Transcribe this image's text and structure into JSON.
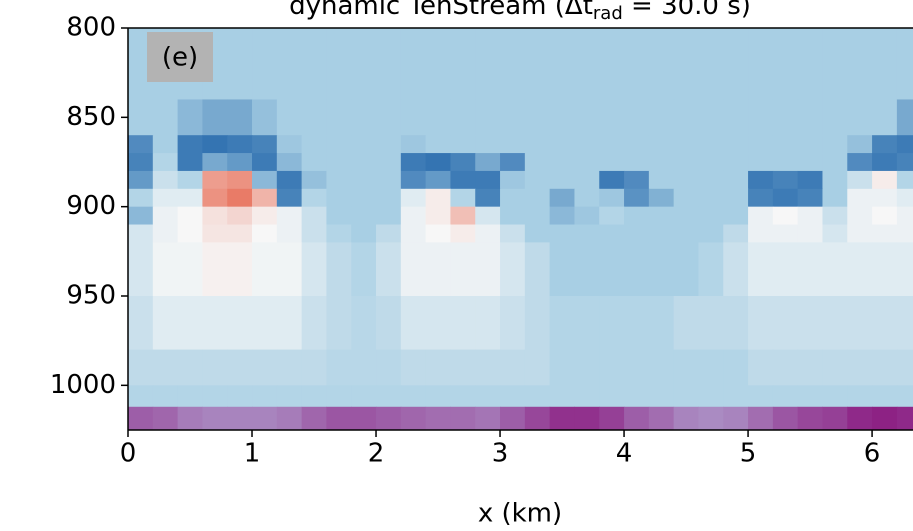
{
  "chart_data": {
    "type": "heatmap",
    "title_parts": [
      "dynamic TenStream (Δt",
      "rad",
      " = 30.0 s)"
    ],
    "panel_label": "(e)",
    "xlabel": "x (km)",
    "xlim": [
      0,
      6.33
    ],
    "xticks": [
      0,
      1,
      2,
      3,
      4,
      5,
      6
    ],
    "ylim": [
      1025,
      800
    ],
    "yticks": [
      800,
      850,
      900,
      950,
      1000
    ],
    "x_edges": [
      0,
      0.2,
      0.4,
      0.6,
      0.8,
      1.0,
      1.2,
      1.4,
      1.6,
      1.8,
      2.0,
      2.2,
      2.4,
      2.6,
      2.8,
      3.0,
      3.2,
      3.4,
      3.6,
      3.8,
      4.0,
      4.2,
      4.4,
      4.6,
      4.8,
      5.0,
      5.2,
      5.4,
      5.6,
      5.8,
      6.0,
      6.2,
      6.4
    ],
    "y_edges": [
      800,
      840,
      860,
      870,
      880,
      890,
      900,
      910,
      920,
      950,
      980,
      1000,
      1012
    ],
    "colormap": [
      "#2a6cae",
      "#a8cfe4",
      "#f7f7f7",
      "#e8705a"
    ],
    "colormap_values": [
      -1,
      -0.35,
      0,
      0.6
    ],
    "values": [
      [
        -0.35,
        -0.35,
        -0.35,
        -0.35,
        -0.35,
        -0.35,
        -0.35,
        -0.35,
        -0.35,
        -0.35,
        -0.35,
        -0.35,
        -0.35,
        -0.35,
        -0.35,
        -0.35,
        -0.35,
        -0.35,
        -0.35,
        -0.35,
        -0.35,
        -0.35,
        -0.35,
        -0.35,
        -0.35,
        -0.35,
        -0.35,
        -0.35,
        -0.35,
        -0.35,
        -0.35,
        -0.35
      ],
      [
        -0.35,
        -0.35,
        -0.5,
        -0.6,
        -0.6,
        -0.45,
        -0.35,
        -0.35,
        -0.35,
        -0.35,
        -0.35,
        -0.35,
        -0.35,
        -0.35,
        -0.35,
        -0.35,
        -0.35,
        -0.35,
        -0.35,
        -0.35,
        -0.35,
        -0.35,
        -0.35,
        -0.35,
        -0.35,
        -0.35,
        -0.35,
        -0.35,
        -0.35,
        -0.35,
        -0.35,
        -0.6
      ],
      [
        -0.8,
        -0.35,
        -0.9,
        -0.95,
        -0.9,
        -0.85,
        -0.4,
        -0.35,
        -0.35,
        -0.35,
        -0.35,
        -0.4,
        -0.35,
        -0.35,
        -0.35,
        -0.35,
        -0.35,
        -0.35,
        -0.35,
        -0.35,
        -0.35,
        -0.35,
        -0.35,
        -0.35,
        -0.35,
        -0.35,
        -0.35,
        -0.35,
        -0.35,
        -0.45,
        -0.85,
        -0.9
      ],
      [
        -0.85,
        -0.3,
        -0.9,
        -0.6,
        -0.7,
        -0.9,
        -0.5,
        -0.35,
        -0.35,
        -0.35,
        -0.35,
        -0.9,
        -0.95,
        -0.85,
        -0.6,
        -0.8,
        -0.35,
        -0.35,
        -0.35,
        -0.35,
        -0.35,
        -0.35,
        -0.35,
        -0.35,
        -0.35,
        -0.35,
        -0.35,
        -0.35,
        -0.35,
        -0.8,
        -0.9,
        -0.85
      ],
      [
        -0.7,
        -0.2,
        -0.3,
        0.4,
        0.45,
        -0.5,
        -0.9,
        -0.45,
        -0.35,
        -0.35,
        -0.35,
        -0.8,
        -0.7,
        -0.9,
        -0.9,
        -0.4,
        -0.35,
        -0.35,
        -0.35,
        -0.9,
        -0.8,
        -0.35,
        -0.35,
        -0.35,
        -0.35,
        -0.9,
        -0.85,
        -0.9,
        -0.35,
        -0.2,
        0.05,
        -0.3
      ],
      [
        -0.3,
        -0.1,
        -0.1,
        0.45,
        0.55,
        0.3,
        -0.85,
        -0.3,
        -0.35,
        -0.35,
        -0.35,
        -0.1,
        0.05,
        -0.3,
        -0.85,
        -0.35,
        -0.35,
        -0.6,
        -0.35,
        -0.4,
        -0.75,
        -0.55,
        -0.35,
        -0.35,
        -0.35,
        -0.85,
        -0.9,
        -0.85,
        -0.35,
        -0.05,
        -0.05,
        -0.1
      ],
      [
        -0.5,
        -0.05,
        0,
        0.1,
        0.15,
        0.05,
        -0.05,
        -0.2,
        -0.35,
        -0.35,
        -0.35,
        -0.05,
        0.05,
        0.25,
        -0.15,
        -0.35,
        -0.35,
        -0.5,
        -0.4,
        -0.3,
        -0.35,
        -0.35,
        -0.35,
        -0.35,
        -0.35,
        -0.05,
        0,
        -0.05,
        -0.2,
        -0.05,
        0,
        -0.05
      ],
      [
        -0.15,
        -0.05,
        0,
        0.08,
        0.08,
        0,
        -0.05,
        -0.2,
        -0.3,
        -0.35,
        -0.25,
        -0.05,
        0,
        0.05,
        -0.05,
        -0.2,
        -0.35,
        -0.35,
        -0.35,
        -0.35,
        -0.35,
        -0.35,
        -0.35,
        -0.35,
        -0.25,
        -0.05,
        -0.05,
        -0.05,
        -0.15,
        -0.05,
        -0.05,
        -0.05
      ],
      [
        -0.15,
        -0.03,
        -0.03,
        0.03,
        0.03,
        -0.03,
        -0.03,
        -0.15,
        -0.25,
        -0.3,
        -0.2,
        -0.05,
        -0.05,
        -0.05,
        -0.05,
        -0.15,
        -0.25,
        -0.35,
        -0.35,
        -0.35,
        -0.35,
        -0.35,
        -0.35,
        -0.3,
        -0.2,
        -0.1,
        -0.1,
        -0.1,
        -0.1,
        -0.1,
        -0.1,
        -0.1
      ],
      [
        -0.2,
        -0.1,
        -0.1,
        -0.1,
        -0.1,
        -0.1,
        -0.1,
        -0.2,
        -0.25,
        -0.28,
        -0.25,
        -0.15,
        -0.15,
        -0.15,
        -0.15,
        -0.2,
        -0.25,
        -0.3,
        -0.3,
        -0.3,
        -0.3,
        -0.3,
        -0.25,
        -0.25,
        -0.25,
        -0.2,
        -0.2,
        -0.2,
        -0.2,
        -0.2,
        -0.2,
        -0.2
      ],
      [
        -0.25,
        -0.25,
        -0.25,
        -0.25,
        -0.25,
        -0.25,
        -0.25,
        -0.25,
        -0.28,
        -0.28,
        -0.28,
        -0.25,
        -0.25,
        -0.25,
        -0.25,
        -0.25,
        -0.25,
        -0.3,
        -0.3,
        -0.3,
        -0.3,
        -0.3,
        -0.3,
        -0.3,
        -0.3,
        -0.25,
        -0.25,
        -0.25,
        -0.25,
        -0.25,
        -0.25,
        -0.25
      ],
      [
        -0.3,
        -0.3,
        -0.3,
        -0.3,
        -0.3,
        -0.3,
        -0.3,
        -0.3,
        -0.3,
        -0.3,
        -0.3,
        -0.3,
        -0.3,
        -0.3,
        -0.3,
        -0.3,
        -0.3,
        -0.3,
        -0.3,
        -0.3,
        -0.3,
        -0.3,
        -0.3,
        -0.3,
        -0.3,
        -0.3,
        -0.3,
        -0.3,
        -0.3,
        -0.3,
        -0.3,
        -0.3
      ]
    ],
    "surface_y_edges": [
      1012,
      1025
    ],
    "surface_colormap": [
      "#b4b1d8",
      "#8b1a80"
    ],
    "surface_zlim": [
      0,
      1
    ],
    "surface_values": [
      0.55,
      0.5,
      0.35,
      0.3,
      0.3,
      0.3,
      0.35,
      0.5,
      0.6,
      0.6,
      0.55,
      0.5,
      0.45,
      0.45,
      0.4,
      0.55,
      0.7,
      0.85,
      0.85,
      0.75,
      0.55,
      0.45,
      0.3,
      0.25,
      0.3,
      0.45,
      0.6,
      0.7,
      0.75,
      0.9,
      0.95,
      0.9
    ]
  }
}
